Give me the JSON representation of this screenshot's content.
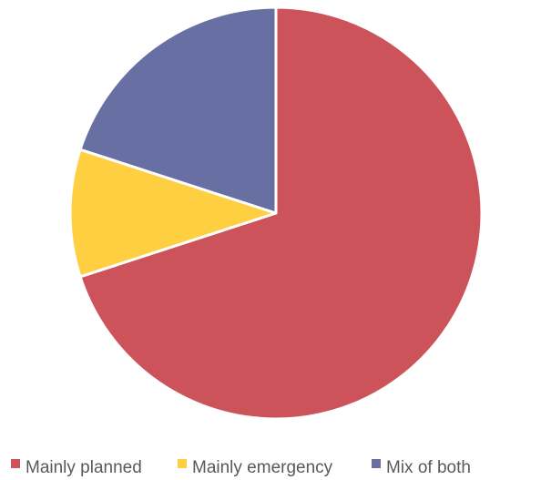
{
  "chart_data": {
    "type": "pie",
    "title": "",
    "slices": [
      {
        "label": "Mainly planned",
        "value": 70,
        "color": "#CD535A"
      },
      {
        "label": "Mainly emergency",
        "value": 10,
        "color": "#FDCF41"
      },
      {
        "label": "Mix of both",
        "value": 20,
        "color": "#676FA3"
      }
    ],
    "legend_position": "bottom",
    "start_angle_deg": 0,
    "direction": "clockwise"
  }
}
